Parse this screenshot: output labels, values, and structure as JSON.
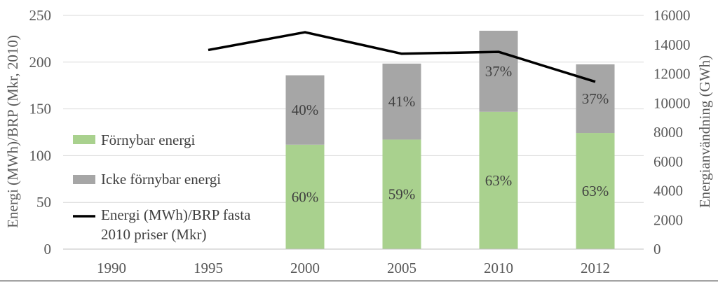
{
  "chart_data": {
    "type": "bar",
    "categories": [
      "1990",
      "1995",
      "2000",
      "2005",
      "2010",
      "2012"
    ],
    "ylabel": "Energi (MWh)/BRP (Mkr, 2010)",
    "y2label": "Energianvändning (GWh)",
    "ylim": [
      0,
      250
    ],
    "y_ticks": [
      "0",
      "50",
      "100",
      "150",
      "200",
      "250"
    ],
    "y2lim": [
      0,
      16000
    ],
    "y2_ticks": [
      "0",
      "2000",
      "4000",
      "6000",
      "8000",
      "10000",
      "12000",
      "14000",
      "16000"
    ],
    "grid": true,
    "legend_position": "left",
    "series": [
      {
        "name": "Förnybar energi",
        "kind": "stacked-bar",
        "axis": "right",
        "color": "#a9d18e",
        "values": [
          null,
          null,
          7150,
          7500,
          9400,
          7950
        ],
        "labels": [
          "",
          "",
          "60%",
          "59%",
          "63%",
          "63%"
        ]
      },
      {
        "name": "Icke förnybar energi",
        "kind": "stacked-bar",
        "axis": "right",
        "color": "#a6a6a6",
        "values": [
          null,
          null,
          4750,
          5200,
          5550,
          4700
        ],
        "labels": [
          "",
          "",
          "40%",
          "41%",
          "37%",
          "37%"
        ]
      },
      {
        "name": "Energi (MWh)/BRP fasta 2010 priser (Mkr)",
        "name_lines": [
          "Energi (MWh)/BRP fasta",
          "2010 priser (Mkr)"
        ],
        "kind": "line",
        "axis": "left",
        "color": "#000000",
        "values": [
          null,
          213,
          232,
          209,
          211,
          179
        ]
      }
    ]
  }
}
